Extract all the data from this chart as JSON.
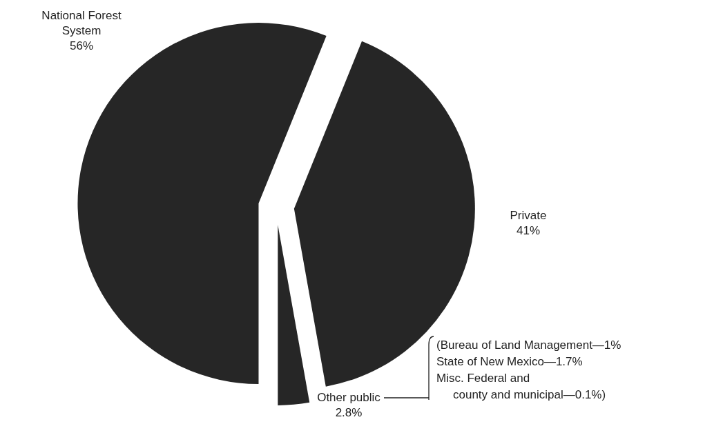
{
  "chart_data": {
    "type": "pie",
    "categories": [
      "National Forest System",
      "Private",
      "Other public"
    ],
    "values": [
      56,
      41,
      2.8
    ],
    "value_labels": [
      "56%",
      "41%",
      "2.8%"
    ],
    "colors": [
      "#262626",
      "#262626",
      "#262626"
    ],
    "annotations": [
      "(Bureau of Land Management—1%",
      "State of New Mexico—1.7%",
      "Misc. Federal and",
      "county and municipal—0.1%)"
    ]
  }
}
